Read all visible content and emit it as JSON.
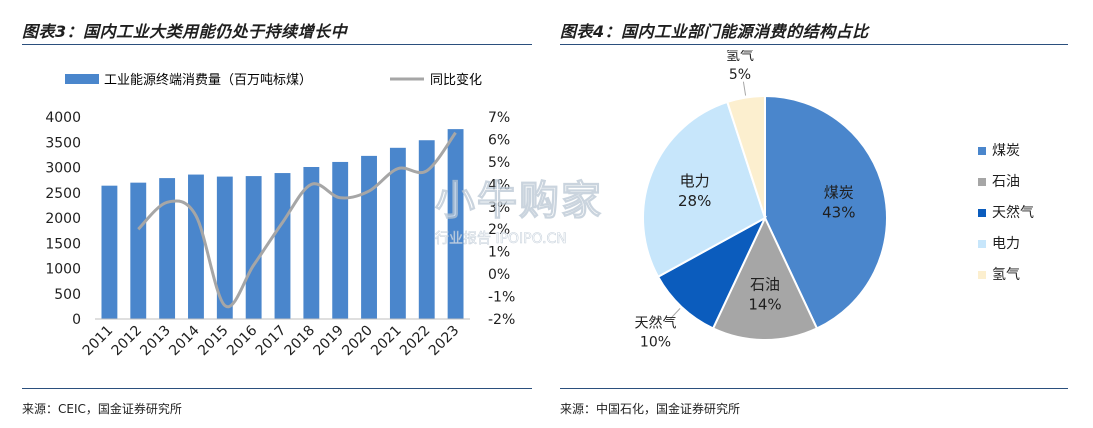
{
  "left": {
    "title": "图表3：国内工业大类用能仍处于持续增长中",
    "source": "来源：CEIC，国金证券研究所"
  },
  "right": {
    "title": "图表4：国内工业部门能源消费的结构占比",
    "source": "来源：中国石化，国金证券研究所"
  },
  "watermark": {
    "main": "小牛购家",
    "sub": "行业报告 IPOIPO.CN"
  },
  "colors": {
    "bar": "#4a86cc",
    "line": "#a6a6a6",
    "rule": "#2b4f7d"
  },
  "chart_data": [
    {
      "type": "bar",
      "categories": [
        "2011",
        "2012",
        "2013",
        "2014",
        "2015",
        "2016",
        "2017",
        "2018",
        "2019",
        "2020",
        "2021",
        "2022",
        "2023"
      ],
      "series": [
        {
          "name": "工业能源终端消费量（百万吨标煤）",
          "type": "bar",
          "axis": "left",
          "values": [
            2640,
            2700,
            2790,
            2860,
            2820,
            2830,
            2890,
            3010,
            3110,
            3230,
            3390,
            3540,
            3760
          ]
        },
        {
          "name": "同比变化",
          "type": "line",
          "axis": "right",
          "values": [
            null,
            2.0,
            3.2,
            2.6,
            -1.4,
            0.4,
            2.3,
            4.0,
            3.4,
            3.7,
            4.7,
            4.6,
            6.3
          ]
        }
      ],
      "yleft": {
        "min": 0,
        "max": 4000,
        "step": 500,
        "ticks": [
          "0",
          "500",
          "1000",
          "1500",
          "2000",
          "2500",
          "3000",
          "3500",
          "4000"
        ]
      },
      "yright": {
        "min": -2,
        "max": 7,
        "step": 1,
        "ticks": [
          "-2%",
          "-1%",
          "0%",
          "1%",
          "2%",
          "3%",
          "4%",
          "5%",
          "6%",
          "7%"
        ]
      },
      "legend_position": "top",
      "grid": false
    },
    {
      "type": "pie",
      "slices": [
        {
          "label": "煤炭",
          "value": 43,
          "display": "43%",
          "color": "#4a86cc",
          "label_color": "#1f1f1f"
        },
        {
          "label": "石油",
          "value": 14,
          "display": "14%",
          "color": "#a6a6a6",
          "label_color": "#1f1f1f"
        },
        {
          "label": "天然气",
          "value": 10,
          "display": "10%",
          "color": "#0b5cbd",
          "label_color": "#1f1f1f"
        },
        {
          "label": "电力",
          "value": 28,
          "display": "28%",
          "color": "#c7e6fb",
          "label_color": "#1f1f1f"
        },
        {
          "label": "氢气",
          "value": 5,
          "display": "5%",
          "color": "#fcefcf",
          "label_color": "#1f1f1f"
        }
      ],
      "legend_position": "right"
    }
  ]
}
